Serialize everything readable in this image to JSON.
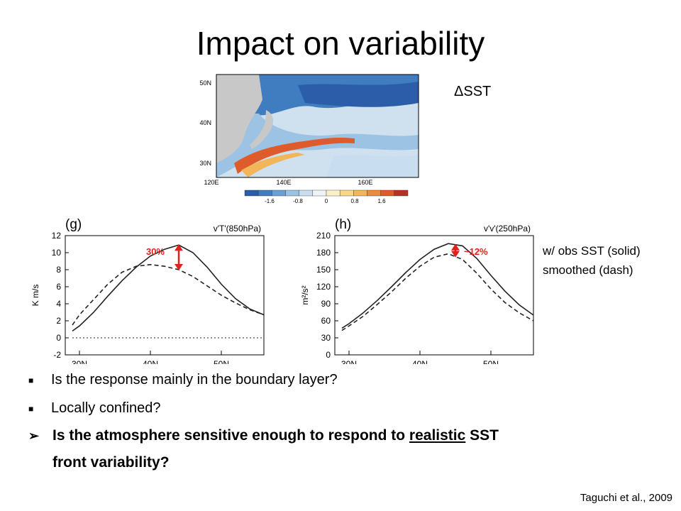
{
  "title": "Impact on variability",
  "sst_label": "ΔSST",
  "map": {
    "lat_labels": [
      "50N",
      "40N",
      "30N"
    ],
    "lon_labels": [
      "120E",
      "140E",
      "160E"
    ],
    "colorbar_ticks": [
      "-1.6",
      "-0.8",
      "0",
      "0.8",
      "1.6"
    ],
    "colorbar_colors": [
      "#2b5da8",
      "#3f7cc0",
      "#6aa0d4",
      "#9cc3e4",
      "#c8ddef",
      "#eef4f8",
      "#fbf1c8",
      "#f8d884",
      "#f3b55a",
      "#ec8a3e",
      "#de5b2c",
      "#b73224"
    ]
  },
  "legend_note": {
    "line1": "w/ obs SST (solid)",
    "line2": "smoothed (dash)"
  },
  "chart_data": [
    {
      "type": "line",
      "panel": "(g)",
      "title": "v'T'(850hPa)",
      "ylabel": "K m/s",
      "x_tick_labels": [
        "30N",
        "40N",
        "50N"
      ],
      "x_ticks": [
        30,
        40,
        50
      ],
      "xlim": [
        28,
        56
      ],
      "ylim": [
        -2,
        12
      ],
      "y_ticks": [
        "-2",
        "0",
        "2",
        "4",
        "6",
        "8",
        "10",
        "12"
      ],
      "annotation": "30%",
      "annotation_x": 44,
      "series": [
        {
          "style": "solid",
          "x": [
            29,
            30,
            32,
            34,
            36,
            38,
            40,
            42,
            44,
            46,
            48,
            50,
            52,
            54,
            56
          ],
          "values": [
            0.8,
            1.4,
            3.0,
            4.9,
            6.7,
            8.3,
            9.6,
            10.4,
            10.9,
            10.0,
            8.3,
            6.3,
            4.6,
            3.4,
            2.7
          ]
        },
        {
          "style": "dash",
          "x": [
            29,
            30,
            32,
            34,
            36,
            38,
            40,
            42,
            44,
            46,
            48,
            50,
            52,
            54,
            56
          ],
          "values": [
            1.5,
            2.7,
            4.5,
            6.3,
            7.7,
            8.4,
            8.6,
            8.4,
            8.0,
            7.2,
            6.1,
            5.0,
            4.1,
            3.3,
            2.7
          ]
        },
        {
          "style": "zero-dot",
          "x": [
            29,
            56
          ],
          "values": [
            0,
            0
          ]
        }
      ]
    },
    {
      "type": "line",
      "panel": "(h)",
      "title": "v'v'(250hPa)",
      "ylabel": "m²/s²",
      "x_tick_labels": [
        "30N",
        "40N",
        "50N"
      ],
      "x_ticks": [
        30,
        40,
        50
      ],
      "xlim": [
        28,
        56
      ],
      "ylim": [
        0,
        210
      ],
      "y_ticks": [
        "0",
        "30",
        "60",
        "90",
        "120",
        "150",
        "180",
        "210"
      ],
      "annotation": "~12%",
      "annotation_x": 45,
      "series": [
        {
          "style": "solid",
          "x": [
            29,
            30,
            32,
            34,
            36,
            38,
            40,
            42,
            44,
            46,
            48,
            50,
            52,
            54,
            56
          ],
          "values": [
            47,
            55,
            74,
            96,
            120,
            145,
            168,
            186,
            196,
            192,
            170,
            140,
            112,
            88,
            70
          ]
        },
        {
          "style": "dash",
          "x": [
            29,
            30,
            32,
            34,
            36,
            38,
            40,
            42,
            44,
            46,
            48,
            50,
            52,
            54,
            56
          ],
          "values": [
            43,
            51,
            68,
            89,
            111,
            135,
            156,
            172,
            178,
            168,
            144,
            116,
            92,
            74,
            60
          ]
        }
      ]
    }
  ],
  "bullets": [
    {
      "text": "Is the response mainly in the boundary layer?"
    },
    {
      "text": "Locally confined?"
    }
  ],
  "bold_bullet": {
    "part1": "Is the atmosphere sensitive enough to respond to ",
    "underlined": "realistic",
    "part2": " SST",
    "line2": "front variability?"
  },
  "citation": "Taguchi et al., 2009"
}
